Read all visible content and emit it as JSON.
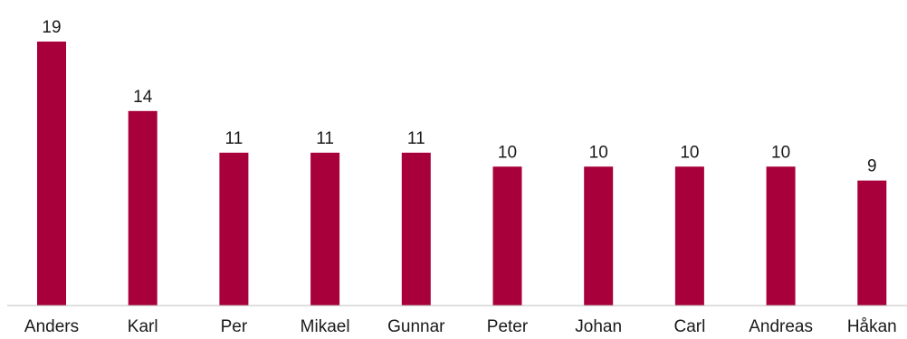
{
  "chart_data": {
    "type": "bar",
    "title": "",
    "xlabel": "",
    "ylabel": "",
    "categories": [
      "Anders",
      "Karl",
      "Per",
      "Mikael",
      "Gunnar",
      "Peter",
      "Johan",
      "Carl",
      "Andreas",
      "Håkan"
    ],
    "values": [
      19,
      14,
      11,
      11,
      11,
      10,
      10,
      10,
      10,
      9
    ],
    "ylim": [
      0,
      19
    ],
    "bar_color": "#a8003b",
    "grid": false,
    "legend": "none",
    "data_labels": true
  }
}
